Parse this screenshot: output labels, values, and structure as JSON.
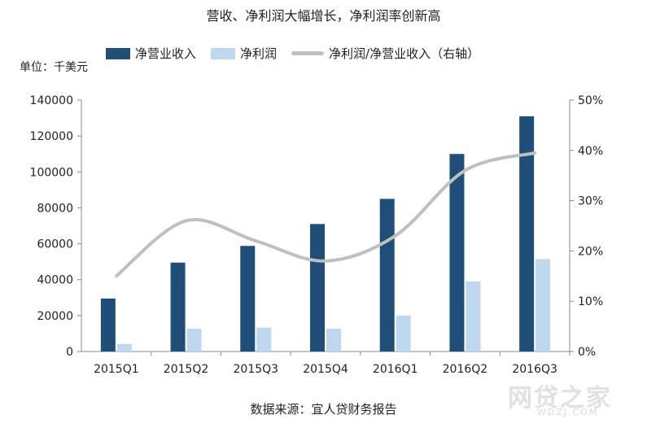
{
  "chart_data": {
    "type": "bar",
    "title": "营收、净利润大幅增长，净利润率创新高",
    "unit_label": "单位：千美元",
    "source": "数据来源：宜人贷财务报告",
    "categories": [
      "2015Q1",
      "2015Q2",
      "2015Q3",
      "2015Q4",
      "2016Q1",
      "2016Q2",
      "2016Q3"
    ],
    "series": [
      {
        "name": "净营业收入",
        "type": "bar",
        "axis": "left",
        "color": "#1f4e79",
        "values": [
          29500,
          49500,
          58800,
          71000,
          85000,
          110000,
          131000
        ]
      },
      {
        "name": "净利润",
        "type": "bar",
        "axis": "left",
        "color": "#bdd7ee",
        "values": [
          4200,
          12700,
          13300,
          12700,
          20000,
          39000,
          51500
        ]
      },
      {
        "name": "净利润/净营业收入（右轴）",
        "type": "line",
        "axis": "right",
        "color": "#bfbfbf",
        "values": [
          0.15,
          0.26,
          0.22,
          0.18,
          0.23,
          0.36,
          0.395
        ]
      }
    ],
    "y_left": {
      "min": 0,
      "max": 140000,
      "ticks": [
        "0",
        "20000",
        "40000",
        "60000",
        "80000",
        "100000",
        "120000",
        "140000"
      ]
    },
    "y_right": {
      "min": 0,
      "max": 0.5,
      "ticks": [
        "0%",
        "10%",
        "20%",
        "30%",
        "40%",
        "50%"
      ]
    },
    "grid": false,
    "legend_position": "top"
  },
  "watermark": {
    "text": "网贷之家",
    "sub": "WDZJ.COM"
  }
}
